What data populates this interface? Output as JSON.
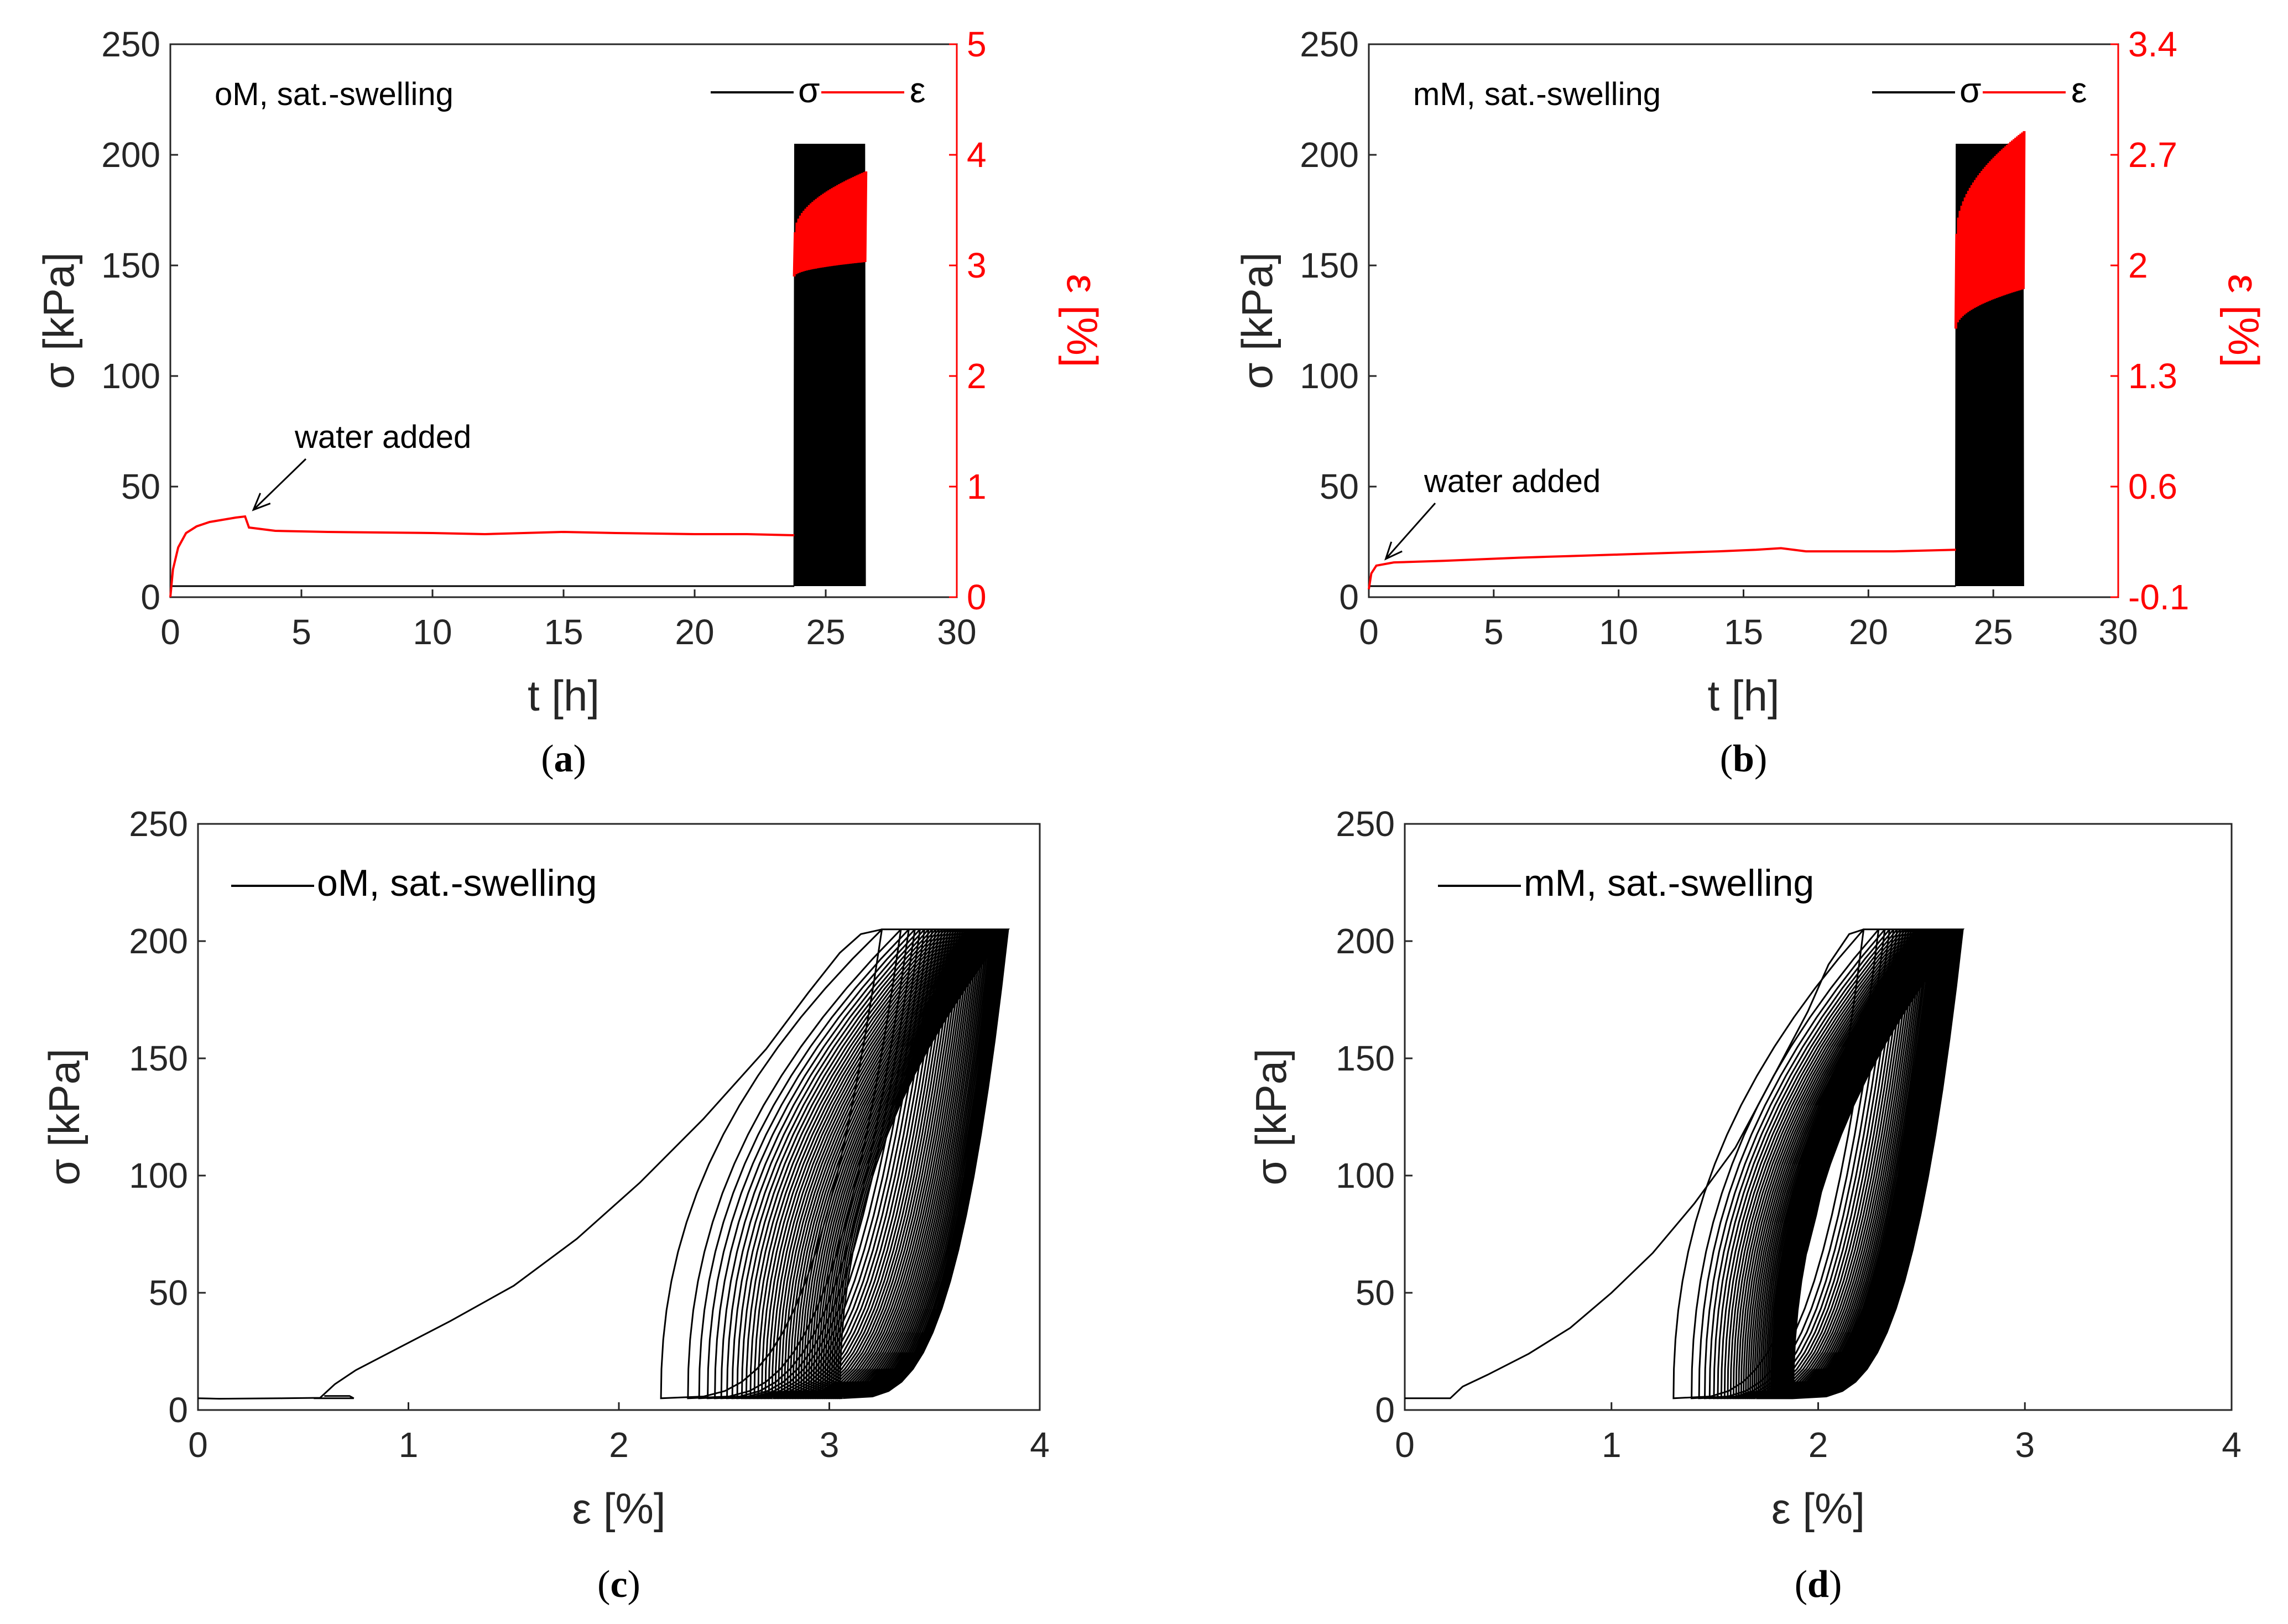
{
  "colors": {
    "stress": "#000000",
    "strain": "#ff0000",
    "axis": "#262626"
  },
  "panels": [
    {
      "id": "a",
      "caption_open": "(",
      "caption_letter": "a",
      "caption_close": ")",
      "annotation": "oM, sat.-swelling",
      "arrow_label": "water added",
      "legend_sigma": "σ",
      "legend_eps": "ε"
    },
    {
      "id": "b",
      "caption_open": "(",
      "caption_letter": "b",
      "caption_close": ")",
      "annotation": "mM, sat.-swelling",
      "arrow_label": "water added",
      "legend_sigma": "σ",
      "legend_eps": "ε"
    },
    {
      "id": "c",
      "caption_open": "(",
      "caption_letter": "c",
      "caption_close": ")",
      "legend_label": "oM, sat.-swelling"
    },
    {
      "id": "d",
      "caption_open": "(",
      "caption_letter": "d",
      "caption_close": ")",
      "legend_label": "mM, sat.-swelling"
    }
  ],
  "chart_data": [
    {
      "panel": "a",
      "type": "line",
      "title": "",
      "xlabel": "t [h]",
      "ylabel": "σ [kPa]",
      "y2label": "ε [%]",
      "xlim": [
        0,
        30
      ],
      "ylim": [
        0,
        250
      ],
      "y2lim": [
        0,
        5
      ],
      "xticks": [
        "0",
        "5",
        "10",
        "15",
        "20",
        "25",
        "30"
      ],
      "yticks": [
        "0",
        "50",
        "100",
        "150",
        "200",
        "250"
      ],
      "y2ticks": [
        "0",
        "1",
        "2",
        "3",
        "4",
        "5"
      ],
      "grid": false,
      "legend_position": "top-right",
      "series": [
        {
          "name": "σ",
          "axis": "left",
          "baseline_kPa": 5,
          "baseline_until_h": 23.8,
          "cycling": {
            "t_start_h": 23.8,
            "t_end_h": 26.5,
            "cycles": 48,
            "min_kPa": 5,
            "max_kPa": 205
          }
        },
        {
          "name": "ε",
          "axis": "right",
          "points": [
            [
              0,
              0
            ],
            [
              0.1,
              0.25
            ],
            [
              0.3,
              0.45
            ],
            [
              0.6,
              0.58
            ],
            [
              1.0,
              0.64
            ],
            [
              1.5,
              0.68
            ],
            [
              2.0,
              0.7
            ],
            [
              2.5,
              0.72
            ],
            [
              2.85,
              0.73
            ],
            [
              3.0,
              0.63
            ],
            [
              4,
              0.6
            ],
            [
              6,
              0.59
            ],
            [
              10,
              0.58
            ],
            [
              12,
              0.57
            ],
            [
              15,
              0.59
            ],
            [
              17,
              0.58
            ],
            [
              20,
              0.57
            ],
            [
              22,
              0.57
            ],
            [
              23.8,
              0.56
            ]
          ],
          "cycling": {
            "t_start_h": 23.8,
            "t_end_h": 26.5,
            "lower_start": 2.9,
            "lower_end": 3.03,
            "upper_start": 3.3,
            "upper_end": 3.85
          }
        }
      ],
      "annotations": [
        {
          "text": "water added",
          "x_h": 3.0,
          "y_pct": 0.73
        }
      ]
    },
    {
      "panel": "b",
      "type": "line",
      "title": "",
      "xlabel": "t [h]",
      "ylabel": "σ [kPa]",
      "y2label": "ε [%]",
      "xlim": [
        0,
        30
      ],
      "ylim": [
        0,
        250
      ],
      "y2lim": [
        -0.1,
        3.4
      ],
      "xticks": [
        "0",
        "5",
        "10",
        "15",
        "20",
        "25",
        "30"
      ],
      "yticks": [
        "0",
        "50",
        "100",
        "150",
        "200",
        "250"
      ],
      "y2ticks": [
        "-0.1",
        "0.6",
        "1.3",
        "2",
        "2.7",
        "3.4"
      ],
      "grid": false,
      "legend_position": "top-right",
      "series": [
        {
          "name": "σ",
          "axis": "left",
          "baseline_kPa": 5,
          "baseline_until_h": 23.5,
          "cycling": {
            "t_start_h": 23.5,
            "t_end_h": 26.2,
            "cycles": 48,
            "min_kPa": 5,
            "max_kPa": 205
          }
        },
        {
          "name": "ε",
          "axis": "right",
          "points": [
            [
              0,
              -0.05
            ],
            [
              0.1,
              0.05
            ],
            [
              0.3,
              0.1
            ],
            [
              1,
              0.12
            ],
            [
              3,
              0.13
            ],
            [
              6,
              0.15
            ],
            [
              8,
              0.16
            ],
            [
              10,
              0.17
            ],
            [
              12,
              0.18
            ],
            [
              14,
              0.19
            ],
            [
              15.5,
              0.2
            ],
            [
              16.5,
              0.21
            ],
            [
              17.5,
              0.19
            ],
            [
              19,
              0.19
            ],
            [
              21,
              0.19
            ],
            [
              23.5,
              0.2
            ]
          ],
          "cycling": {
            "t_start_h": 23.5,
            "t_end_h": 26.2,
            "lower_start": 1.6,
            "lower_end": 1.85,
            "upper_start": 2.2,
            "upper_end": 2.85
          }
        }
      ],
      "annotations": [
        {
          "text": "water added",
          "x_h": 0.5,
          "y_pct": 0.1
        }
      ]
    },
    {
      "panel": "c",
      "type": "line",
      "title": "",
      "xlabel": "ε [%]",
      "ylabel": "σ [kPa]",
      "xlim": [
        0,
        4
      ],
      "ylim": [
        0,
        250
      ],
      "xticks": [
        "0",
        "1",
        "2",
        "3",
        "4"
      ],
      "yticks": [
        "0",
        "50",
        "100",
        "150",
        "200",
        "250"
      ],
      "grid": false,
      "legend_position": "top-left",
      "series": [
        {
          "name": "oM, sat.-swelling",
          "initial_path": [
            [
              0,
              5
            ],
            [
              0.1,
              4.8
            ],
            [
              0.4,
              5
            ],
            [
              0.58,
              5.2
            ],
            [
              0.65,
              11
            ],
            [
              0.75,
              17
            ],
            [
              0.9,
              24
            ],
            [
              1.2,
              38
            ],
            [
              1.5,
              53
            ],
            [
              1.8,
              73
            ],
            [
              2.1,
              97
            ],
            [
              2.4,
              124
            ],
            [
              2.7,
              154
            ],
            [
              2.9,
              178
            ],
            [
              3.05,
              195
            ],
            [
              3.15,
              203
            ],
            [
              3.25,
              205
            ]
          ],
          "initial_tail": [
            [
              0.55,
              5
            ],
            [
              0.74,
              5
            ],
            [
              0.72,
              6
            ],
            [
              0.6,
              6
            ]
          ],
          "first_unload_to": 2.2,
          "cycles": 45,
          "eps_max_first": 3.25,
          "eps_max_last": 3.85,
          "eps_min_first": 2.2,
          "eps_min_last": 3.05,
          "sigma_min": 5,
          "sigma_max": 205
        }
      ]
    },
    {
      "panel": "d",
      "type": "line",
      "title": "",
      "xlabel": "ε [%]",
      "ylabel": "σ [kPa]",
      "xlim": [
        0,
        4
      ],
      "ylim": [
        0,
        250
      ],
      "xticks": [
        "0",
        "1",
        "2",
        "3",
        "4"
      ],
      "yticks": [
        "0",
        "50",
        "100",
        "150",
        "200",
        "250"
      ],
      "grid": false,
      "legend_position": "top-left",
      "series": [
        {
          "name": "mM, sat.-swelling",
          "initial_path": [
            [
              0,
              5
            ],
            [
              0.15,
              5
            ],
            [
              0.22,
              5
            ],
            [
              0.28,
              10
            ],
            [
              0.4,
              15
            ],
            [
              0.6,
              24
            ],
            [
              0.8,
              35
            ],
            [
              1.0,
              50
            ],
            [
              1.2,
              67
            ],
            [
              1.4,
              88
            ],
            [
              1.6,
              112
            ],
            [
              1.8,
              145
            ],
            [
              1.95,
              170
            ],
            [
              2.05,
              190
            ],
            [
              2.15,
              203
            ],
            [
              2.22,
              205
            ]
          ],
          "initial_tail": [],
          "first_unload_to": 1.3,
          "cycles": 45,
          "eps_max_first": 2.22,
          "eps_max_last": 2.7,
          "eps_min_first": 1.3,
          "eps_min_last": 1.88,
          "sigma_min": 5,
          "sigma_max": 205
        }
      ]
    }
  ]
}
